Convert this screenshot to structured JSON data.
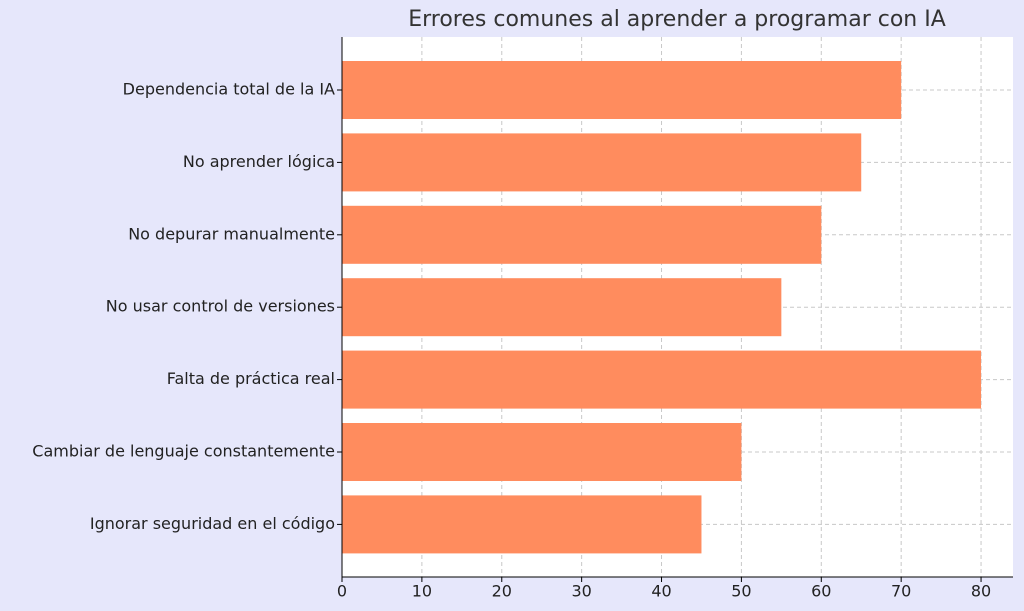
{
  "chart_data": {
    "type": "barh",
    "title": "Errores comunes al aprender a programar con IA",
    "categories": [
      "Dependencia total de la IA",
      "No aprender lógica",
      "No depurar manualmente",
      "No usar control de versiones",
      "Falta de práctica real",
      "Cambiar de lenguaje constantemente",
      "Ignorar seguridad en el código"
    ],
    "values": [
      70,
      65,
      60,
      55,
      80,
      50,
      45
    ],
    "color": "#ff8c5e",
    "xlim": [
      0,
      84
    ],
    "xticks": [
      0,
      10,
      20,
      30,
      40,
      50,
      60,
      70,
      80
    ],
    "grid": true
  }
}
